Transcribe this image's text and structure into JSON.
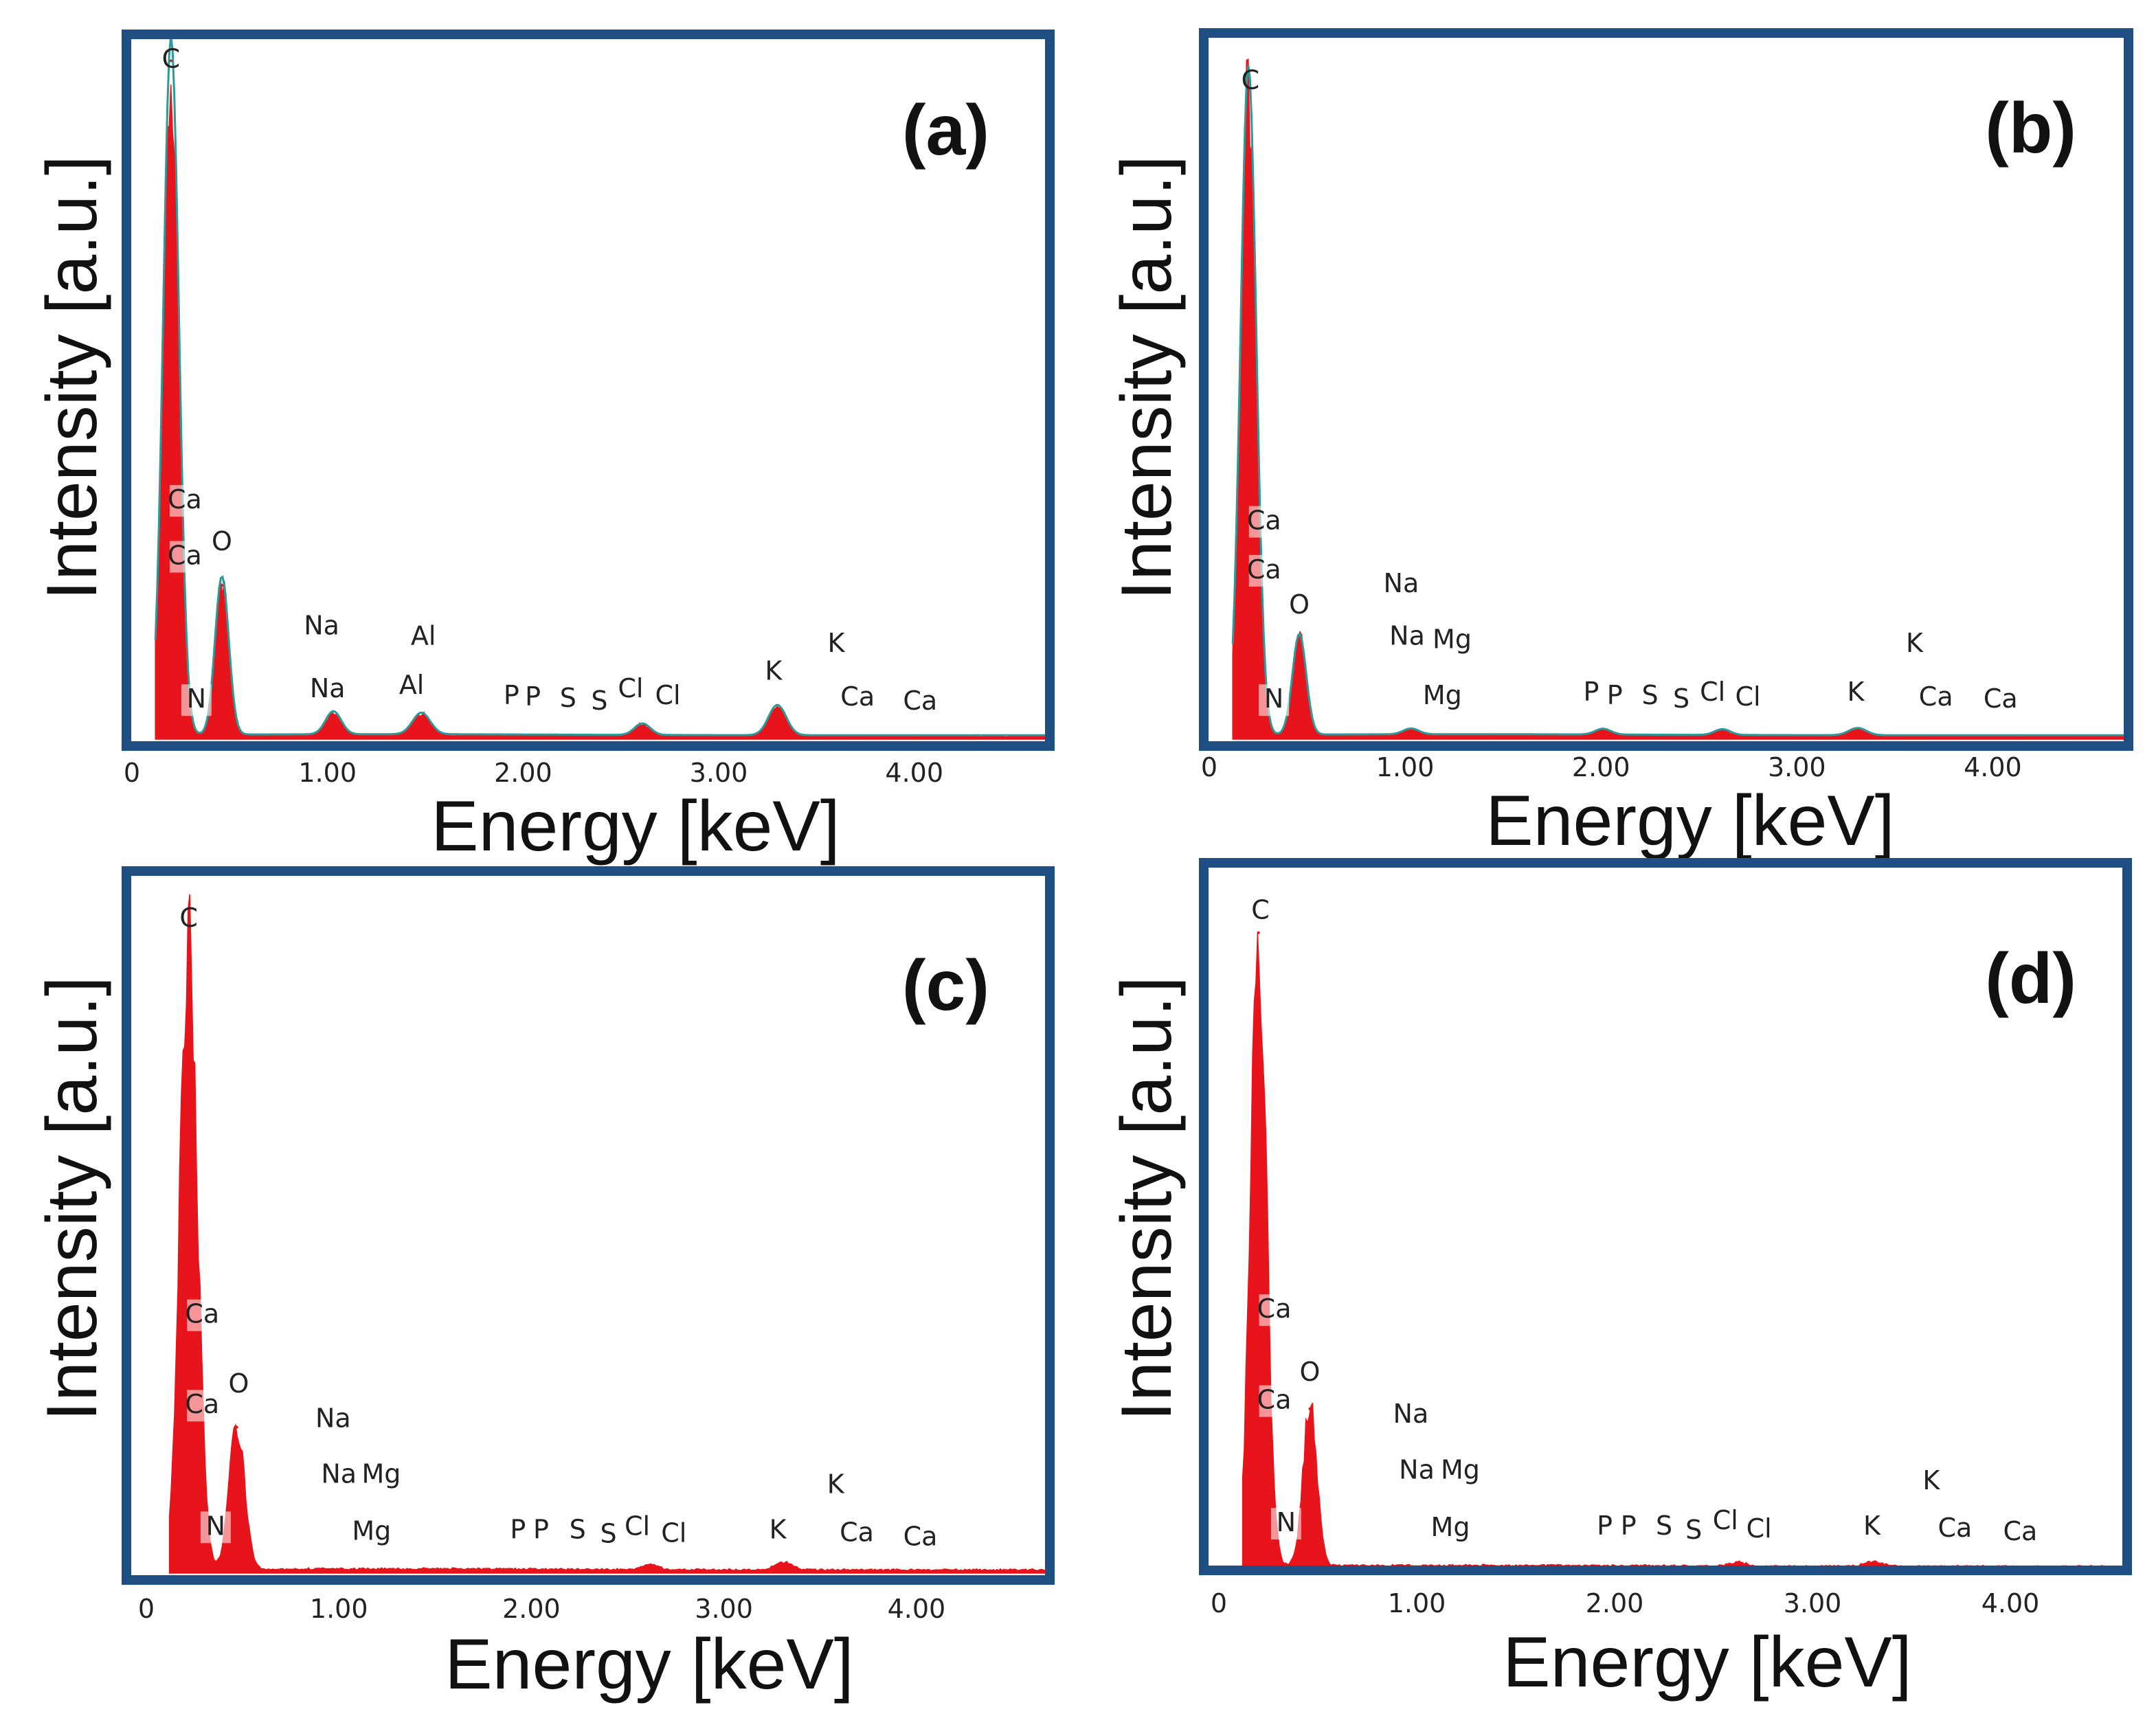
{
  "figure": {
    "colors": {
      "frame": "#1f4e82",
      "spectrum": "#e8141b",
      "outline": "#2a9a9a",
      "label_box": "#f2c9c9"
    }
  },
  "chart_data": [
    {
      "type": "area",
      "panel_label": "(a)",
      "xlabel": "Energy [keV]",
      "ylabel": "Intensity [a.u.]",
      "xlim": [
        0,
        4.7
      ],
      "ylim": [
        0,
        100
      ],
      "xticks": [
        "0",
        "1.00",
        "2.00",
        "3.00",
        "4.00"
      ],
      "xtick_values": [
        0,
        1,
        2,
        3,
        4
      ],
      "outline": true,
      "peaks": [
        {
          "element": "C",
          "energy": 0.2,
          "intensity": 97,
          "width": 0.04
        },
        {
          "element": "O",
          "energy": 0.46,
          "intensity": 22,
          "width": 0.035
        },
        {
          "element": "Na",
          "energy": 1.03,
          "intensity": 3.2,
          "width": 0.04
        },
        {
          "element": "Al",
          "energy": 1.48,
          "intensity": 3.0,
          "width": 0.045
        },
        {
          "element": "Cl",
          "energy": 2.61,
          "intensity": 1.6,
          "width": 0.04
        },
        {
          "element": "K",
          "energy": 3.3,
          "intensity": 4.2,
          "width": 0.045
        }
      ],
      "annotations": [
        {
          "text": "C",
          "energy": 0.2,
          "intensity": 96,
          "marker": false
        },
        {
          "text": "Ca",
          "energy": 0.27,
          "intensity": 33,
          "marker": true
        },
        {
          "text": "Ca",
          "energy": 0.27,
          "intensity": 25,
          "marker": true
        },
        {
          "text": "O",
          "energy": 0.46,
          "intensity": 27,
          "marker": false
        },
        {
          "text": "N",
          "energy": 0.33,
          "intensity": 4.5,
          "marker": true
        },
        {
          "text": "Na",
          "energy": 0.97,
          "intensity": 15,
          "marker": false
        },
        {
          "text": "Na",
          "energy": 1.0,
          "intensity": 6,
          "marker": false
        },
        {
          "text": "Al",
          "energy": 1.49,
          "intensity": 13.5,
          "marker": false
        },
        {
          "text": "Al",
          "energy": 1.43,
          "intensity": 6.5,
          "marker": false
        },
        {
          "text": "P",
          "energy": 1.94,
          "intensity": 5,
          "marker": false
        },
        {
          "text": "P",
          "energy": 2.05,
          "intensity": 4.8,
          "marker": false
        },
        {
          "text": "S",
          "energy": 2.23,
          "intensity": 4.6,
          "marker": false
        },
        {
          "text": "S",
          "energy": 2.39,
          "intensity": 4.2,
          "marker": false
        },
        {
          "text": "Cl",
          "energy": 2.55,
          "intensity": 6,
          "marker": false
        },
        {
          "text": "Cl",
          "energy": 2.74,
          "intensity": 5,
          "marker": false
        },
        {
          "text": "K",
          "energy": 3.28,
          "intensity": 8.5,
          "marker": false
        },
        {
          "text": "K",
          "energy": 3.6,
          "intensity": 12.5,
          "marker": false
        },
        {
          "text": "Ca",
          "energy": 3.71,
          "intensity": 4.8,
          "marker": false
        },
        {
          "text": "Ca",
          "energy": 4.03,
          "intensity": 4.2,
          "marker": false
        }
      ]
    },
    {
      "type": "area",
      "panel_label": "(b)",
      "xlabel": "Energy [keV]",
      "ylabel": "Intensity [a.u.]",
      "xlim": [
        0,
        4.7
      ],
      "ylim": [
        0,
        100
      ],
      "xticks": [
        "0",
        "1.00",
        "2.00",
        "3.00",
        "4.00"
      ],
      "xtick_values": [
        0,
        1,
        2,
        3,
        4
      ],
      "outline": true,
      "peaks": [
        {
          "element": "C",
          "energy": 0.2,
          "intensity": 93,
          "width": 0.04
        },
        {
          "element": "O",
          "energy": 0.46,
          "intensity": 14,
          "width": 0.035
        },
        {
          "element": "Na",
          "energy": 1.03,
          "intensity": 0.8,
          "width": 0.04
        },
        {
          "element": "P",
          "energy": 2.01,
          "intensity": 0.8,
          "width": 0.04
        },
        {
          "element": "Cl",
          "energy": 2.62,
          "intensity": 0.8,
          "width": 0.04
        },
        {
          "element": "K",
          "energy": 3.31,
          "intensity": 1.0,
          "width": 0.045
        }
      ],
      "annotations": [
        {
          "text": "C",
          "energy": 0.21,
          "intensity": 93,
          "marker": false
        },
        {
          "text": "Ca",
          "energy": 0.28,
          "intensity": 30,
          "marker": true
        },
        {
          "text": "Ca",
          "energy": 0.28,
          "intensity": 23,
          "marker": true
        },
        {
          "text": "O",
          "energy": 0.46,
          "intensity": 18,
          "marker": false
        },
        {
          "text": "N",
          "energy": 0.33,
          "intensity": 4.5,
          "marker": true
        },
        {
          "text": "Na",
          "energy": 0.98,
          "intensity": 21,
          "marker": false
        },
        {
          "text": "Na",
          "energy": 1.01,
          "intensity": 13.5,
          "marker": false
        },
        {
          "text": "Mg",
          "energy": 1.24,
          "intensity": 13,
          "marker": false
        },
        {
          "text": "Mg",
          "energy": 1.19,
          "intensity": 5,
          "marker": false
        },
        {
          "text": "P",
          "energy": 1.95,
          "intensity": 5.5,
          "marker": false
        },
        {
          "text": "P",
          "energy": 2.07,
          "intensity": 5,
          "marker": false
        },
        {
          "text": "S",
          "energy": 2.25,
          "intensity": 5,
          "marker": false
        },
        {
          "text": "S",
          "energy": 2.41,
          "intensity": 4.5,
          "marker": false
        },
        {
          "text": "Cl",
          "energy": 2.57,
          "intensity": 5.5,
          "marker": false
        },
        {
          "text": "Cl",
          "energy": 2.75,
          "intensity": 4.8,
          "marker": false
        },
        {
          "text": "K",
          "energy": 3.3,
          "intensity": 5.5,
          "marker": false
        },
        {
          "text": "K",
          "energy": 3.6,
          "intensity": 12.5,
          "marker": false
        },
        {
          "text": "Ca",
          "energy": 3.71,
          "intensity": 4.8,
          "marker": false
        },
        {
          "text": "Ca",
          "energy": 4.04,
          "intensity": 4.5,
          "marker": false
        }
      ]
    },
    {
      "type": "area",
      "panel_label": "(c)",
      "xlabel": "Energy [keV]",
      "ylabel": "Intensity [a.u.]",
      "xlim": [
        0,
        4.7
      ],
      "ylim": [
        0,
        100
      ],
      "xticks": [
        "0",
        "1.00",
        "2.00",
        "3.00",
        "4.00"
      ],
      "xtick_values": [
        0,
        1,
        2,
        3,
        4
      ],
      "outline": false,
      "peaks": [
        {
          "element": "C",
          "energy": 0.22,
          "intensity": 91,
          "width": 0.045
        },
        {
          "element": "O",
          "energy": 0.47,
          "intensity": 21,
          "width": 0.04
        },
        {
          "element": "Cl",
          "energy": 2.62,
          "intensity": 0.8,
          "width": 0.04
        },
        {
          "element": "K",
          "energy": 3.31,
          "intensity": 1.1,
          "width": 0.045
        }
      ],
      "annotations": [
        {
          "text": "C",
          "energy": 0.22,
          "intensity": 93,
          "marker": false
        },
        {
          "text": "Ca",
          "energy": 0.29,
          "intensity": 36,
          "marker": true
        },
        {
          "text": "Ca",
          "energy": 0.29,
          "intensity": 23,
          "marker": true
        },
        {
          "text": "O",
          "energy": 0.48,
          "intensity": 26,
          "marker": false
        },
        {
          "text": "N",
          "energy": 0.36,
          "intensity": 5.5,
          "marker": true
        },
        {
          "text": "Na",
          "energy": 0.97,
          "intensity": 21,
          "marker": false
        },
        {
          "text": "Na",
          "energy": 1.0,
          "intensity": 13,
          "marker": false
        },
        {
          "text": "Mg",
          "energy": 1.22,
          "intensity": 13,
          "marker": false
        },
        {
          "text": "Mg",
          "energy": 1.17,
          "intensity": 4.8,
          "marker": false
        },
        {
          "text": "P",
          "energy": 1.93,
          "intensity": 5,
          "marker": false
        },
        {
          "text": "P",
          "energy": 2.05,
          "intensity": 5,
          "marker": false
        },
        {
          "text": "S",
          "energy": 2.24,
          "intensity": 5,
          "marker": false
        },
        {
          "text": "S",
          "energy": 2.4,
          "intensity": 4.4,
          "marker": false
        },
        {
          "text": "Cl",
          "energy": 2.55,
          "intensity": 5.5,
          "marker": false
        },
        {
          "text": "Cl",
          "energy": 2.74,
          "intensity": 4.5,
          "marker": false
        },
        {
          "text": "K",
          "energy": 3.28,
          "intensity": 5,
          "marker": false
        },
        {
          "text": "K",
          "energy": 3.58,
          "intensity": 11.5,
          "marker": false
        },
        {
          "text": "Ca",
          "energy": 3.69,
          "intensity": 4.6,
          "marker": false
        },
        {
          "text": "Ca",
          "energy": 4.02,
          "intensity": 4,
          "marker": false
        }
      ]
    },
    {
      "type": "area",
      "panel_label": "(d)",
      "xlabel": "Energy [keV]",
      "ylabel": "Intensity [a.u.]",
      "xlim": [
        0,
        4.5
      ],
      "ylim": [
        0,
        100
      ],
      "xticks": [
        "0",
        "1.00",
        "2.00",
        "3.00",
        "4.00"
      ],
      "xtick_values": [
        0,
        1,
        2,
        3,
        4
      ],
      "outline": false,
      "peaks": [
        {
          "element": "C",
          "energy": 0.2,
          "intensity": 91,
          "width": 0.04
        },
        {
          "element": "O",
          "energy": 0.46,
          "intensity": 23,
          "width": 0.035
        },
        {
          "element": "Cl",
          "energy": 2.62,
          "intensity": 0.6,
          "width": 0.04
        },
        {
          "element": "K",
          "energy": 3.31,
          "intensity": 0.7,
          "width": 0.045
        }
      ],
      "annotations": [
        {
          "text": "C",
          "energy": 0.21,
          "intensity": 93,
          "marker": false
        },
        {
          "text": "Ca",
          "energy": 0.28,
          "intensity": 36,
          "marker": true
        },
        {
          "text": "Ca",
          "energy": 0.28,
          "intensity": 23,
          "marker": true
        },
        {
          "text": "O",
          "energy": 0.46,
          "intensity": 27,
          "marker": false
        },
        {
          "text": "N",
          "energy": 0.34,
          "intensity": 5.5,
          "marker": true
        },
        {
          "text": "Na",
          "energy": 0.97,
          "intensity": 21,
          "marker": false
        },
        {
          "text": "Na",
          "energy": 1.0,
          "intensity": 13,
          "marker": false
        },
        {
          "text": "Mg",
          "energy": 1.22,
          "intensity": 13,
          "marker": false
        },
        {
          "text": "Mg",
          "energy": 1.17,
          "intensity": 4.8,
          "marker": false
        },
        {
          "text": "P",
          "energy": 1.95,
          "intensity": 5,
          "marker": false
        },
        {
          "text": "P",
          "energy": 2.07,
          "intensity": 5,
          "marker": false
        },
        {
          "text": "S",
          "energy": 2.25,
          "intensity": 5,
          "marker": false
        },
        {
          "text": "S",
          "energy": 2.4,
          "intensity": 4.4,
          "marker": false
        },
        {
          "text": "Cl",
          "energy": 2.56,
          "intensity": 5.8,
          "marker": false
        },
        {
          "text": "Cl",
          "energy": 2.73,
          "intensity": 4.6,
          "marker": false
        },
        {
          "text": "K",
          "energy": 3.3,
          "intensity": 5,
          "marker": false
        },
        {
          "text": "K",
          "energy": 3.6,
          "intensity": 11.5,
          "marker": false
        },
        {
          "text": "Ca",
          "energy": 3.72,
          "intensity": 4.7,
          "marker": false
        },
        {
          "text": "Ca",
          "energy": 4.05,
          "intensity": 4.2,
          "marker": false
        }
      ]
    }
  ]
}
